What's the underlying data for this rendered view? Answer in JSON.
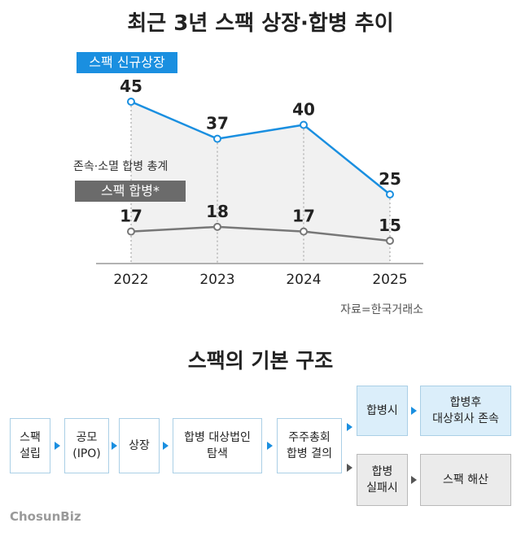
{
  "chart_data": {
    "type": "line",
    "title": "최근 3년 스팩 상장·합병 추이",
    "categories": [
      "2022",
      "2023",
      "2024",
      "2025"
    ],
    "series": [
      {
        "name": "스팩 신규상장",
        "values": [
          45,
          37,
          40,
          25
        ],
        "color": "#1a8fe0"
      },
      {
        "name": "스팩 합병*",
        "values": [
          17,
          18,
          17,
          15
        ],
        "color": "#777777"
      }
    ],
    "note": "존속·소멸 합병 총계",
    "source": "자료=한국거래소",
    "shaded_area_under": "스팩 신규상장",
    "gridlines": "vertical dotted at categories"
  },
  "diagram": {
    "title": "스팩의 기본 구조",
    "steps": [
      {
        "label": "스팩\n설립"
      },
      {
        "label": "공모\n(IPO)"
      },
      {
        "label": "상장"
      },
      {
        "label": "합병 대상법인\n탐색"
      },
      {
        "label": "주주총회\n합병 결의"
      }
    ],
    "branches": {
      "success": {
        "label": "합병시",
        "result": "합병후\n대상회사 존속"
      },
      "failure": {
        "label": "합병\n실패시",
        "result": "스팩 해산"
      }
    }
  },
  "logo": "ChosunBiz",
  "colors": {
    "accent": "#1a8fe0",
    "gray": "#6b6b6b",
    "light_blue": "#dbeefa"
  }
}
